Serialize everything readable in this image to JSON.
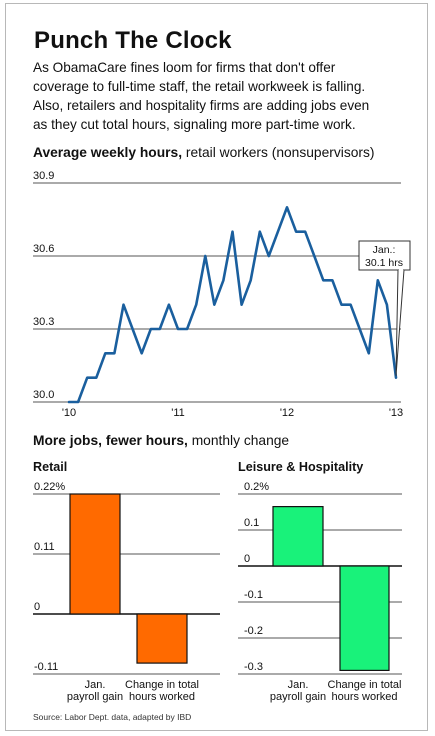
{
  "title": "Punch The Clock",
  "intro_lines": [
    "As ObamaCare fines loom for firms that don't offer",
    "coverage to full-time staff, the retail workweek is falling.",
    "Also, retailers and hospitality firms are adding jobs even",
    "as they cut total hours, signaling more part-time work."
  ],
  "line_chart_heading": {
    "bold": "Average weekly hours,",
    "rest": " retail workers (nonsupervisors)"
  },
  "bar_section_heading": {
    "bold": "More jobs, fewer hours,",
    "rest": " monthly change"
  },
  "source": "Source: Labor Dept. data, adapted by IBD",
  "colors": {
    "line": "#1a5f9e",
    "retail_bar": "#ff6a00",
    "hospitality_bar": "#19f27a",
    "grid": "#555555"
  },
  "chart_data": [
    {
      "type": "line",
      "title": "",
      "xlabel": "",
      "ylabel": "",
      "ylim": [
        30.0,
        30.9
      ],
      "yticks": [
        30.0,
        30.3,
        30.6,
        30.9
      ],
      "ytick_labels": [
        "30.0",
        "30.3",
        "30.6",
        "30.9"
      ],
      "xticks": [
        0,
        12,
        24,
        36
      ],
      "xtick_labels": [
        "'10",
        "'11",
        "'12",
        "'13"
      ],
      "grid": true,
      "annotation": {
        "lines": [
          "Jan.:",
          "30.1 hrs"
        ],
        "point_index": 36
      },
      "series": [
        {
          "values": [
            30.0,
            30.0,
            30.1,
            30.1,
            30.2,
            30.2,
            30.4,
            30.3,
            30.2,
            30.3,
            30.3,
            30.4,
            30.3,
            30.3,
            30.4,
            30.6,
            30.4,
            30.5,
            30.7,
            30.4,
            30.5,
            30.7,
            30.6,
            30.7,
            30.8,
            30.7,
            30.7,
            30.6,
            30.5,
            30.5,
            30.4,
            30.4,
            30.3,
            30.2,
            30.5,
            30.4,
            30.1
          ]
        }
      ]
    },
    {
      "type": "bar",
      "title": "Retail",
      "categories": [
        "Jan.\npayroll gain",
        "Change in total\nhours worked"
      ],
      "values": [
        0.22,
        -0.09
      ],
      "ylim": [
        -0.11,
        0.22
      ],
      "yticks": [
        0.22,
        0.11,
        0,
        -0.11
      ],
      "ytick_labels": [
        "0.22%",
        "0.11",
        "0",
        "-0.11"
      ],
      "grid": true
    },
    {
      "type": "bar",
      "title": "Leisure & Hospitality",
      "categories": [
        "Jan.\npayroll gain",
        "Change in total\nhours worked"
      ],
      "values": [
        0.165,
        -0.29
      ],
      "ylim": [
        -0.3,
        0.2
      ],
      "yticks": [
        0.2,
        0.1,
        0,
        -0.1,
        -0.2,
        -0.3
      ],
      "ytick_labels": [
        "0.2%",
        "0.1",
        "0",
        "-0.1",
        "-0.2",
        "-0.3"
      ],
      "grid": true
    }
  ]
}
